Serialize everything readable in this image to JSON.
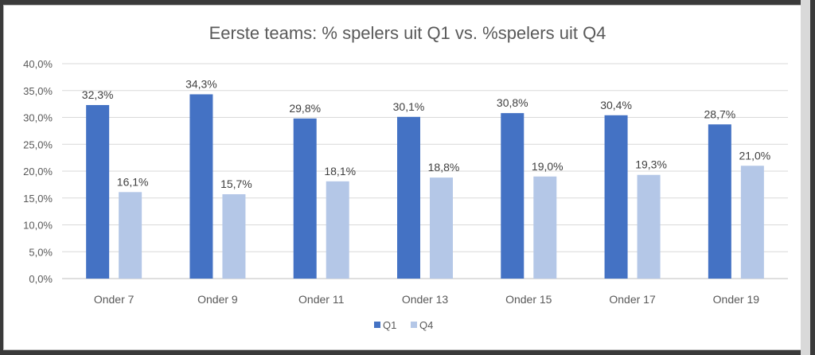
{
  "chart_data": {
    "type": "bar",
    "title": "Eerste teams: % spelers uit Q1 vs. %spelers uit Q4",
    "categories": [
      "Onder 7",
      "Onder 9",
      "Onder 11",
      "Onder 13",
      "Onder 15",
      "Onder 17",
      "Onder 19"
    ],
    "series": [
      {
        "name": "Q1",
        "color": "#4472C4",
        "values": [
          32.3,
          34.3,
          29.8,
          30.1,
          30.8,
          30.4,
          28.7
        ],
        "labels": [
          "32,3%",
          "34,3%",
          "29,8%",
          "30,1%",
          "30,8%",
          "30,4%",
          "28,7%"
        ]
      },
      {
        "name": "Q4",
        "color": "#B4C7E7",
        "values": [
          16.1,
          15.7,
          18.1,
          18.8,
          19.0,
          19.3,
          21.0
        ],
        "labels": [
          "16,1%",
          "15,7%",
          "18,1%",
          "18,8%",
          "19,0%",
          "19,3%",
          "21,0%"
        ]
      }
    ],
    "ylim": [
      0,
      40
    ],
    "y_ticks": [
      "0,0%",
      "5,0%",
      "10,0%",
      "15,0%",
      "20,0%",
      "25,0%",
      "30,0%",
      "35,0%",
      "40,0%"
    ],
    "grid": true,
    "legend_position": "bottom"
  }
}
